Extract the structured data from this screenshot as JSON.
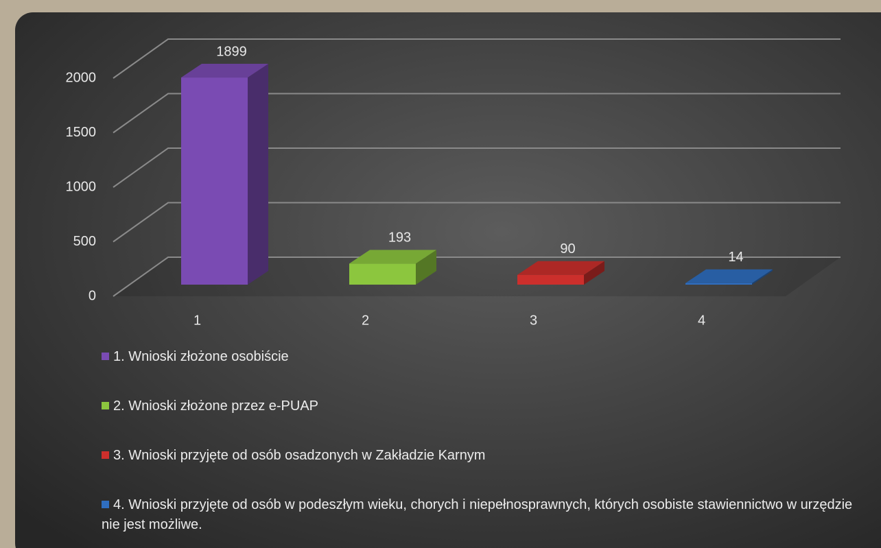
{
  "chart_data": {
    "type": "bar3d",
    "categories": [
      "1",
      "2",
      "3",
      "4"
    ],
    "series": [
      {
        "name": "1. Wnioski złożone osobiście",
        "color": "#7a4bb3",
        "values": [
          1899,
          null,
          null,
          null
        ]
      },
      {
        "name": "2. Wnioski złożone przez e-PUAP",
        "color": "#8cc63e",
        "values": [
          null,
          193,
          null,
          null
        ]
      },
      {
        "name": "3. Wnioski przyjęte od osób osadzonych w Zakładzie Karnym",
        "color": "#cc2f2c",
        "values": [
          null,
          null,
          90,
          null
        ]
      },
      {
        "name": "4. Wnioski przyjęte od osób w podeszłym wieku, chorych i niepełnosprawnych, których osobiste stawiennictwo w urzędzie nie jest możliwe.",
        "color": "#2f6ec0",
        "values": [
          null,
          null,
          null,
          14
        ]
      }
    ],
    "ylim": [
      0,
      2000
    ],
    "yticks": [
      0,
      500,
      1000,
      1500,
      2000
    ],
    "grid": true
  }
}
